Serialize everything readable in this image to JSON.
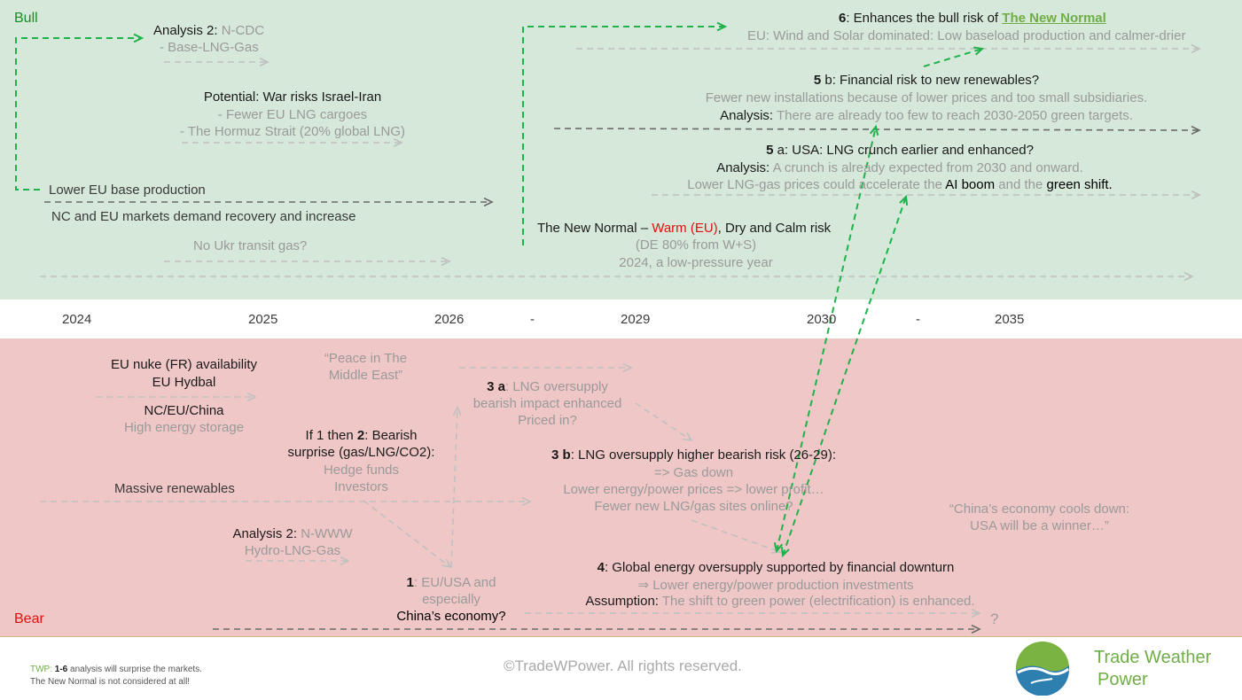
{
  "labels": {
    "bull": "Bull",
    "bear": "Bear"
  },
  "timeline": [
    "2024",
    "2025",
    "2026",
    "-",
    "2029",
    "2030",
    "-",
    "2035"
  ],
  "bull": {
    "analysis2_a": "Analysis 2: ",
    "analysis2_b": "N-CDC",
    "analysis2_c": "- Base-LNG-Gas",
    "war_1": "Potential: War risks Israel-Iran",
    "war_2": "- Fewer EU LNG cargoes",
    "war_3": "- The Hormuz Strait (20% global LNG)",
    "lower_eu": "Lower EU base production",
    "nc_eu": "NC and EU markets demand recovery and increase",
    "no_ukr": "No Ukr transit gas?",
    "nn_1a": "The New Normal – ",
    "nn_1b": "Warm (EU)",
    "nn_1c": ", Dry and Calm risk",
    "nn_2": "(DE 80% from W+S)",
    "nn_3": "2024, a low-pressure year",
    "six_num": "6",
    "six_text": ": Enhances the bull risk of ",
    "six_link": "The New Normal",
    "six_sub": "EU: Wind and Solar dominated: Low baseload production and calmer-drier",
    "fiveb_num": "5",
    "fiveb_text": " b: Financial risk to new renewables?",
    "fiveb_2": "Fewer new installations because of lower prices and too small subsidiaries.",
    "fiveb_3a": "Analysis:",
    "fiveb_3b": " There are already too few to reach 2030-2050 green targets.",
    "fivea_num": "5",
    "fivea_text": " a: USA: LNG crunch earlier and enhanced?",
    "fivea_2a": "Analysis:",
    "fivea_2b": " A crunch is already expected from 2030 and onward.",
    "fivea_3a": "Lower LNG-gas prices could accelerate the ",
    "fivea_3b": "AI boom",
    "fivea_3c": " and the ",
    "fivea_3d": "green shift."
  },
  "bear": {
    "nuke_1": "EU nuke (FR) availability",
    "nuke_2": "EU Hydbal",
    "nuke_3": "NC/EU/China",
    "nuke_4": "High energy storage",
    "peace_1": "“Peace in The",
    "peace_2": "Middle East”",
    "threea_1a": "3 a",
    "threea_1b": ": LNG oversupply",
    "threea_2": "bearish impact enhanced",
    "threea_3": "Priced in?",
    "if_1a": "If 1 then ",
    "if_1b": "2",
    "if_1c": ": Bearish",
    "if_2": "surprise (gas/LNG/CO2):",
    "if_3": "Hedge funds",
    "if_4": "Investors",
    "threeb_1a": "3 b",
    "threeb_1b": ": LNG oversupply higher bearish risk (26-29):",
    "threeb_2": "=> Gas down",
    "threeb_3": "Lower energy/power prices => lower profit…",
    "threeb_4": "Fewer new LNG/gas sites online?",
    "massive": "Massive renewables",
    "china_1": "“China’s economy cools down:",
    "china_2": "USA will be a winner…”",
    "an2_a": "Analysis 2: ",
    "an2_b": "N-WWW",
    "an2_c": "Hydro-LNG-Gas",
    "one_1a": "1",
    "one_1b": ": EU/USA and",
    "one_2": "especially",
    "one_3": "China’s economy?",
    "four_1a": "4",
    "four_1b": ": Global energy oversupply supported by financial downturn",
    "four_2": "⇒ Lower energy/power production investments",
    "four_3a": "Assumption:",
    "four_3b": " The shift to green power (electrification) is enhanced.",
    "q": "?"
  },
  "footer": {
    "twp_a": "TWP:",
    "twp_b": " 1-6",
    "twp_c": " analysis will surprise the markets.",
    "twp_2": "The New Normal is not considered at all!",
    "copyright": "©TradeWPower. All rights reserved.",
    "brand_1": "Trade Weather",
    "brand_2": "Power"
  },
  "colors": {
    "bull_bg": "#d6e8da",
    "bear_bg": "#f0c7c7",
    "green_arrow": "#1fb24a",
    "dark_arrow": "#6b6b6b",
    "light_arrow": "#c0c0c0",
    "brand": "#70ad47",
    "warm": "#e01010"
  }
}
